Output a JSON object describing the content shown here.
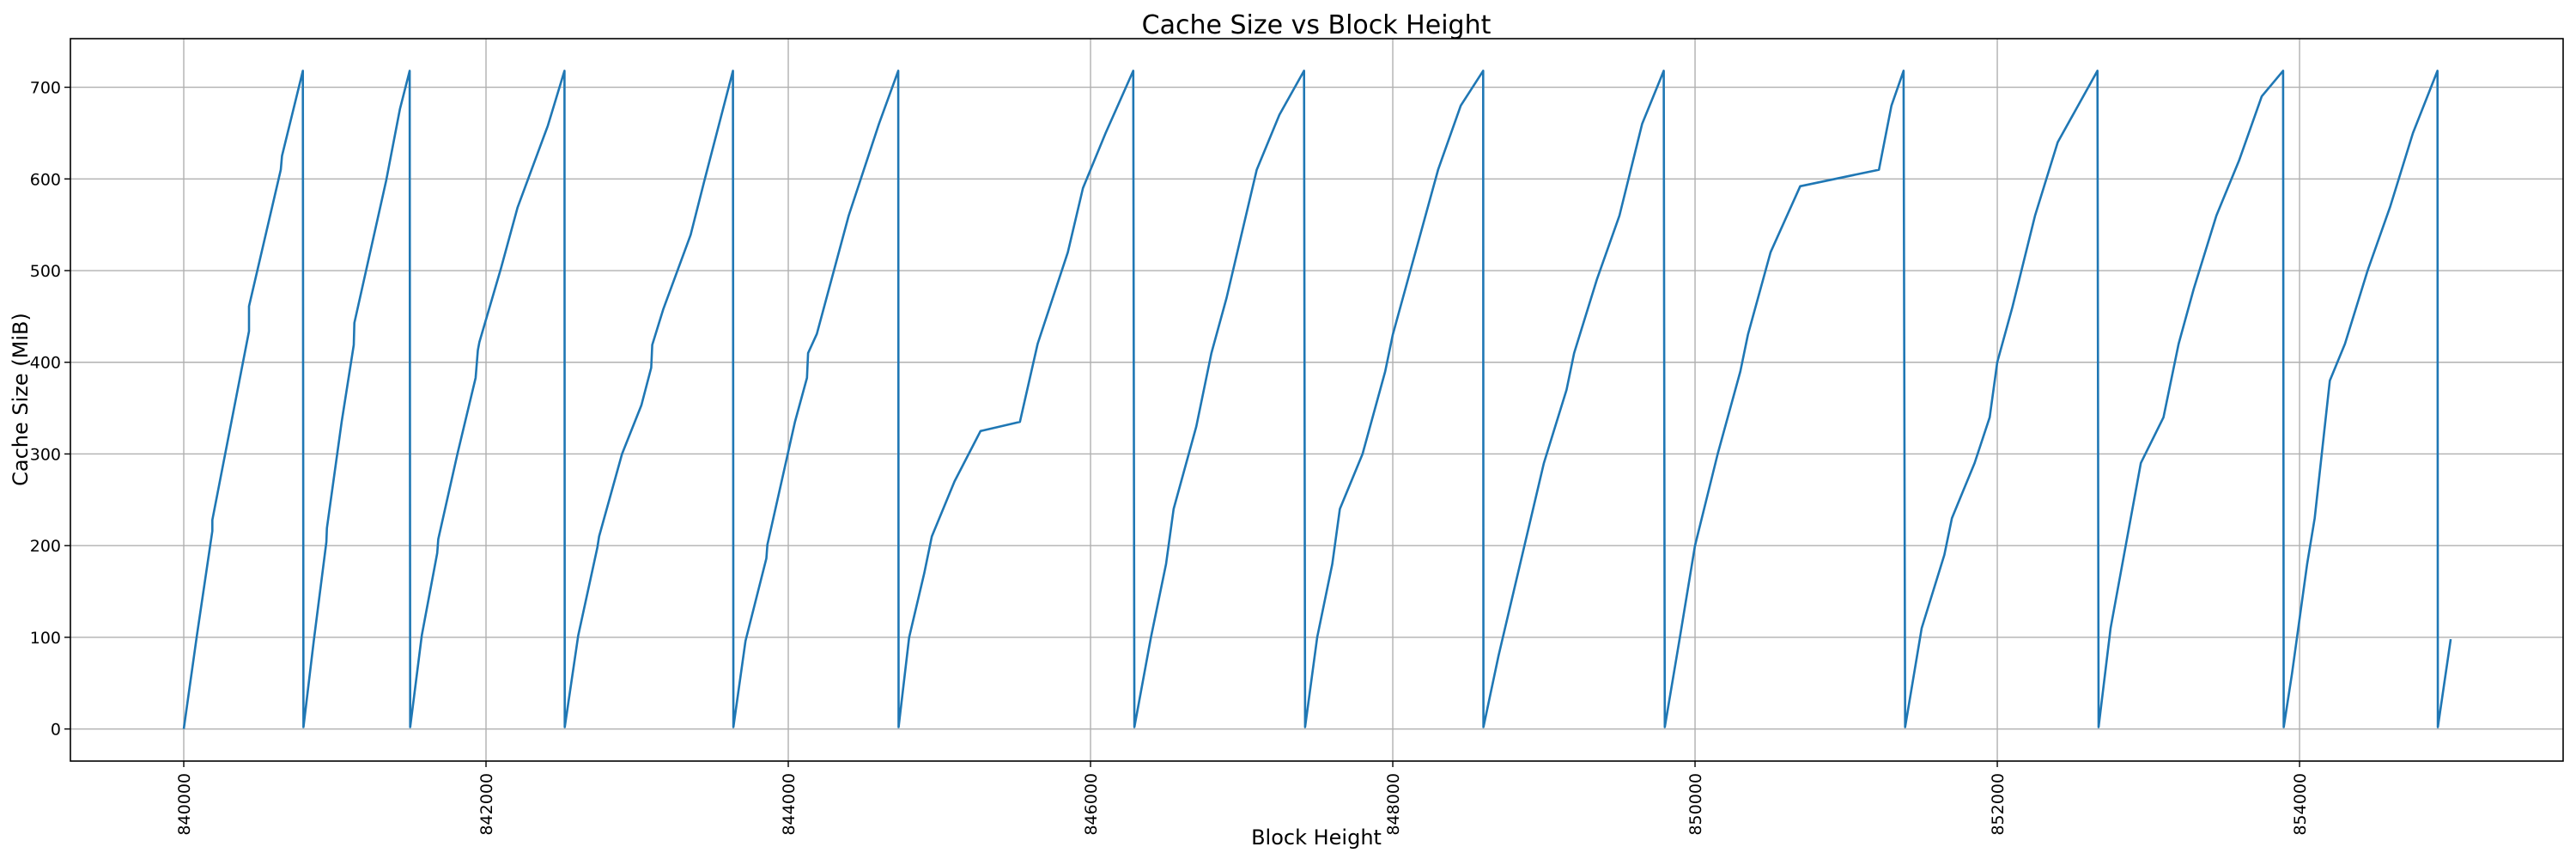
{
  "chart_data": {
    "type": "line",
    "title": "Cache Size vs Block Height",
    "xlabel": "Block Height",
    "ylabel": "Cache Size (MiB)",
    "xlim": [
      839250,
      855744
    ],
    "ylim": [
      -35,
      753
    ],
    "xticks": [
      840000,
      842000,
      844000,
      846000,
      848000,
      850000,
      852000,
      854000
    ],
    "yticks": [
      0,
      100,
      200,
      300,
      400,
      500,
      600,
      700
    ],
    "grid": true,
    "line_color": "#1f77b4",
    "points": [
      [
        840000,
        0
      ],
      [
        840087,
        102
      ],
      [
        840189,
        216
      ],
      [
        840189,
        228
      ],
      [
        840432,
        434
      ],
      [
        840432,
        461
      ],
      [
        840642,
        610
      ],
      [
        840650,
        625
      ],
      [
        840788,
        718
      ],
      [
        840792,
        2
      ],
      [
        840860,
        96
      ],
      [
        840944,
        204
      ],
      [
        840947,
        219
      ],
      [
        841045,
        335
      ],
      [
        841125,
        419
      ],
      [
        841129,
        443
      ],
      [
        841339,
        598
      ],
      [
        841430,
        676
      ],
      [
        841495,
        718
      ],
      [
        841498,
        2
      ],
      [
        841575,
        102
      ],
      [
        841677,
        192
      ],
      [
        841684,
        207
      ],
      [
        841811,
        300
      ],
      [
        841931,
        383
      ],
      [
        841946,
        413
      ],
      [
        841956,
        422
      ],
      [
        842100,
        503
      ],
      [
        842209,
        569
      ],
      [
        842409,
        658
      ],
      [
        842519,
        718
      ],
      [
        842521,
        2
      ],
      [
        842610,
        102
      ],
      [
        842737,
        198
      ],
      [
        842748,
        210
      ],
      [
        842900,
        300
      ],
      [
        843028,
        353
      ],
      [
        843093,
        394
      ],
      [
        843100,
        419
      ],
      [
        843173,
        458
      ],
      [
        843354,
        539
      ],
      [
        843445,
        598
      ],
      [
        843634,
        718
      ],
      [
        843637,
        2
      ],
      [
        843717,
        96
      ],
      [
        843855,
        186
      ],
      [
        843862,
        201
      ],
      [
        844044,
        335
      ],
      [
        844124,
        383
      ],
      [
        844131,
        410
      ],
      [
        844189,
        431
      ],
      [
        844400,
        560
      ],
      [
        844600,
        660
      ],
      [
        844728,
        718
      ],
      [
        844730,
        2
      ],
      [
        844800,
        100
      ],
      [
        844900,
        170
      ],
      [
        844950,
        210
      ],
      [
        845100,
        270
      ],
      [
        845272,
        325
      ],
      [
        845533,
        335
      ],
      [
        845650,
        420
      ],
      [
        845750,
        470
      ],
      [
        845850,
        520
      ],
      [
        845950,
        590
      ],
      [
        846100,
        650
      ],
      [
        846283,
        718
      ],
      [
        846290,
        2
      ],
      [
        846400,
        100
      ],
      [
        846500,
        180
      ],
      [
        846550,
        240
      ],
      [
        846700,
        330
      ],
      [
        846800,
        410
      ],
      [
        846900,
        470
      ],
      [
        847000,
        540
      ],
      [
        847100,
        610
      ],
      [
        847250,
        670
      ],
      [
        847413,
        718
      ],
      [
        847420,
        2
      ],
      [
        847500,
        100
      ],
      [
        847600,
        180
      ],
      [
        847650,
        240
      ],
      [
        847800,
        300
      ],
      [
        847950,
        390
      ],
      [
        848000,
        430
      ],
      [
        848100,
        490
      ],
      [
        848200,
        550
      ],
      [
        848300,
        610
      ],
      [
        848450,
        680
      ],
      [
        848598,
        718
      ],
      [
        848600,
        2
      ],
      [
        848700,
        80
      ],
      [
        848800,
        150
      ],
      [
        848900,
        220
      ],
      [
        849000,
        290
      ],
      [
        849150,
        370
      ],
      [
        849200,
        410
      ],
      [
        849350,
        490
      ],
      [
        849500,
        560
      ],
      [
        849650,
        660
      ],
      [
        849793,
        718
      ],
      [
        849800,
        2
      ],
      [
        849900,
        100
      ],
      [
        850000,
        200
      ],
      [
        850150,
        300
      ],
      [
        850300,
        390
      ],
      [
        850350,
        430
      ],
      [
        850500,
        520
      ],
      [
        850696,
        592
      ],
      [
        851217,
        610
      ],
      [
        851300,
        680
      ],
      [
        851380,
        718
      ],
      [
        851390,
        2
      ],
      [
        851500,
        110
      ],
      [
        851650,
        190
      ],
      [
        851700,
        230
      ],
      [
        851850,
        290
      ],
      [
        851950,
        340
      ],
      [
        852000,
        400
      ],
      [
        852100,
        460
      ],
      [
        852250,
        560
      ],
      [
        852400,
        640
      ],
      [
        852663,
        718
      ],
      [
        852670,
        2
      ],
      [
        852750,
        110
      ],
      [
        852850,
        200
      ],
      [
        852950,
        290
      ],
      [
        853100,
        340
      ],
      [
        853200,
        420
      ],
      [
        853300,
        480
      ],
      [
        853450,
        560
      ],
      [
        853600,
        620
      ],
      [
        853750,
        690
      ],
      [
        853891,
        718
      ],
      [
        853895,
        2
      ],
      [
        853950,
        60
      ],
      [
        854050,
        180
      ],
      [
        854100,
        230
      ],
      [
        854200,
        380
      ],
      [
        854300,
        420
      ],
      [
        854450,
        500
      ],
      [
        854600,
        570
      ],
      [
        854750,
        650
      ],
      [
        854913,
        718
      ],
      [
        854915,
        2
      ],
      [
        855000,
        98
      ]
    ]
  }
}
